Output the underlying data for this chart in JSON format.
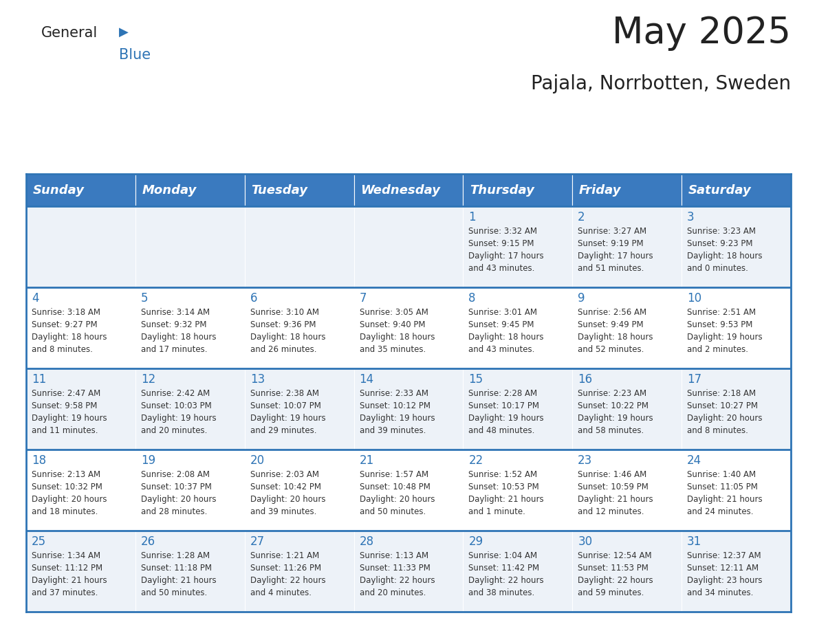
{
  "title": "May 2025",
  "subtitle": "Pajala, Norrbotten, Sweden",
  "days_of_week": [
    "Sunday",
    "Monday",
    "Tuesday",
    "Wednesday",
    "Thursday",
    "Friday",
    "Saturday"
  ],
  "header_bg": "#3a7abf",
  "header_text": "#ffffff",
  "row_bg_odd": "#edf2f8",
  "row_bg_even": "#ffffff",
  "day_num_color": "#2e74b5",
  "text_color": "#333333",
  "grid_color": "#2e74b5",
  "logo_general_color": "#222222",
  "logo_blue_color": "#2e74b5",
  "title_color": "#222222",
  "subtitle_color": "#222222",
  "weeks": [
    [
      {
        "day": "",
        "info": ""
      },
      {
        "day": "",
        "info": ""
      },
      {
        "day": "",
        "info": ""
      },
      {
        "day": "",
        "info": ""
      },
      {
        "day": "1",
        "info": "Sunrise: 3:32 AM\nSunset: 9:15 PM\nDaylight: 17 hours\nand 43 minutes."
      },
      {
        "day": "2",
        "info": "Sunrise: 3:27 AM\nSunset: 9:19 PM\nDaylight: 17 hours\nand 51 minutes."
      },
      {
        "day": "3",
        "info": "Sunrise: 3:23 AM\nSunset: 9:23 PM\nDaylight: 18 hours\nand 0 minutes."
      }
    ],
    [
      {
        "day": "4",
        "info": "Sunrise: 3:18 AM\nSunset: 9:27 PM\nDaylight: 18 hours\nand 8 minutes."
      },
      {
        "day": "5",
        "info": "Sunrise: 3:14 AM\nSunset: 9:32 PM\nDaylight: 18 hours\nand 17 minutes."
      },
      {
        "day": "6",
        "info": "Sunrise: 3:10 AM\nSunset: 9:36 PM\nDaylight: 18 hours\nand 26 minutes."
      },
      {
        "day": "7",
        "info": "Sunrise: 3:05 AM\nSunset: 9:40 PM\nDaylight: 18 hours\nand 35 minutes."
      },
      {
        "day": "8",
        "info": "Sunrise: 3:01 AM\nSunset: 9:45 PM\nDaylight: 18 hours\nand 43 minutes."
      },
      {
        "day": "9",
        "info": "Sunrise: 2:56 AM\nSunset: 9:49 PM\nDaylight: 18 hours\nand 52 minutes."
      },
      {
        "day": "10",
        "info": "Sunrise: 2:51 AM\nSunset: 9:53 PM\nDaylight: 19 hours\nand 2 minutes."
      }
    ],
    [
      {
        "day": "11",
        "info": "Sunrise: 2:47 AM\nSunset: 9:58 PM\nDaylight: 19 hours\nand 11 minutes."
      },
      {
        "day": "12",
        "info": "Sunrise: 2:42 AM\nSunset: 10:03 PM\nDaylight: 19 hours\nand 20 minutes."
      },
      {
        "day": "13",
        "info": "Sunrise: 2:38 AM\nSunset: 10:07 PM\nDaylight: 19 hours\nand 29 minutes."
      },
      {
        "day": "14",
        "info": "Sunrise: 2:33 AM\nSunset: 10:12 PM\nDaylight: 19 hours\nand 39 minutes."
      },
      {
        "day": "15",
        "info": "Sunrise: 2:28 AM\nSunset: 10:17 PM\nDaylight: 19 hours\nand 48 minutes."
      },
      {
        "day": "16",
        "info": "Sunrise: 2:23 AM\nSunset: 10:22 PM\nDaylight: 19 hours\nand 58 minutes."
      },
      {
        "day": "17",
        "info": "Sunrise: 2:18 AM\nSunset: 10:27 PM\nDaylight: 20 hours\nand 8 minutes."
      }
    ],
    [
      {
        "day": "18",
        "info": "Sunrise: 2:13 AM\nSunset: 10:32 PM\nDaylight: 20 hours\nand 18 minutes."
      },
      {
        "day": "19",
        "info": "Sunrise: 2:08 AM\nSunset: 10:37 PM\nDaylight: 20 hours\nand 28 minutes."
      },
      {
        "day": "20",
        "info": "Sunrise: 2:03 AM\nSunset: 10:42 PM\nDaylight: 20 hours\nand 39 minutes."
      },
      {
        "day": "21",
        "info": "Sunrise: 1:57 AM\nSunset: 10:48 PM\nDaylight: 20 hours\nand 50 minutes."
      },
      {
        "day": "22",
        "info": "Sunrise: 1:52 AM\nSunset: 10:53 PM\nDaylight: 21 hours\nand 1 minute."
      },
      {
        "day": "23",
        "info": "Sunrise: 1:46 AM\nSunset: 10:59 PM\nDaylight: 21 hours\nand 12 minutes."
      },
      {
        "day": "24",
        "info": "Sunrise: 1:40 AM\nSunset: 11:05 PM\nDaylight: 21 hours\nand 24 minutes."
      }
    ],
    [
      {
        "day": "25",
        "info": "Sunrise: 1:34 AM\nSunset: 11:12 PM\nDaylight: 21 hours\nand 37 minutes."
      },
      {
        "day": "26",
        "info": "Sunrise: 1:28 AM\nSunset: 11:18 PM\nDaylight: 21 hours\nand 50 minutes."
      },
      {
        "day": "27",
        "info": "Sunrise: 1:21 AM\nSunset: 11:26 PM\nDaylight: 22 hours\nand 4 minutes."
      },
      {
        "day": "28",
        "info": "Sunrise: 1:13 AM\nSunset: 11:33 PM\nDaylight: 22 hours\nand 20 minutes."
      },
      {
        "day": "29",
        "info": "Sunrise: 1:04 AM\nSunset: 11:42 PM\nDaylight: 22 hours\nand 38 minutes."
      },
      {
        "day": "30",
        "info": "Sunrise: 12:54 AM\nSunset: 11:53 PM\nDaylight: 22 hours\nand 59 minutes."
      },
      {
        "day": "31",
        "info": "Sunrise: 12:37 AM\nSunset: 12:11 AM\nDaylight: 23 hours\nand 34 minutes."
      }
    ]
  ]
}
